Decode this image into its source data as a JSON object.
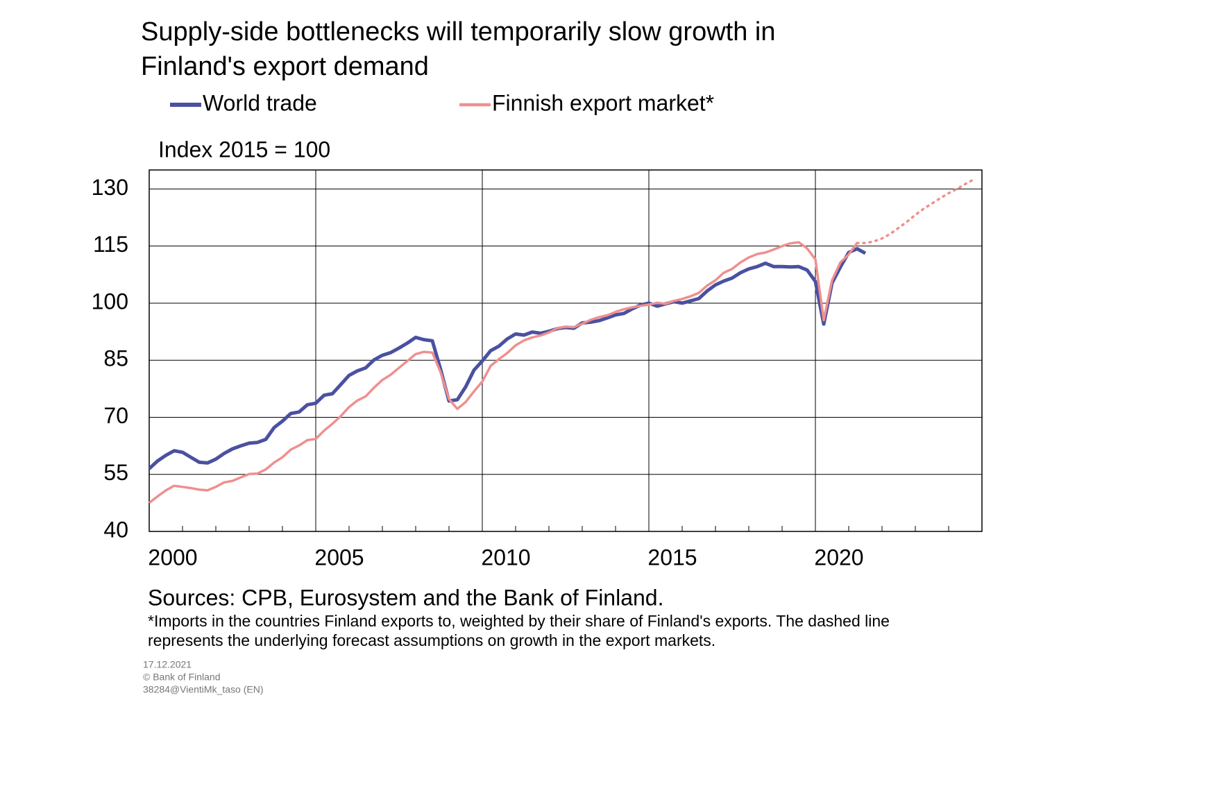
{
  "chart_data": {
    "type": "line",
    "title": "Supply-side bottlenecks will temporarily slow growth in Finland's export demand",
    "y_label": "Index 2015 = 100",
    "sources": "Sources: CPB, Eurosystem and the Bank of Finland.",
    "footnote": "*Imports in the countries Finland exports to, weighted by their share of Finland's exports. The dashed line represents the underlying forecast assumptions on growth in the export markets.",
    "meta": [
      "17.12.2021",
      "© Bank of Finland",
      "38284@VientiMk_taso  (EN)"
    ],
    "xlim": [
      2000,
      2025
    ],
    "xticks": [
      2000,
      2005,
      2010,
      2015,
      2020
    ],
    "xminorticks": [
      2001,
      2002,
      2003,
      2004,
      2006,
      2007,
      2008,
      2009,
      2011,
      2012,
      2013,
      2014,
      2016,
      2017,
      2018,
      2019,
      2021,
      2022,
      2023,
      2024
    ],
    "ylim": [
      40,
      135
    ],
    "yticks": [
      40,
      55,
      70,
      85,
      100,
      115,
      130
    ],
    "grid": true,
    "x": [
      2000,
      2000.25,
      2000.5,
      2000.75,
      2001,
      2001.25,
      2001.5,
      2001.75,
      2002,
      2002.25,
      2002.5,
      2002.75,
      2003,
      2003.25,
      2003.5,
      2003.75,
      2004,
      2004.25,
      2004.5,
      2004.75,
      2005,
      2005.25,
      2005.5,
      2005.75,
      2006,
      2006.25,
      2006.5,
      2006.75,
      2007,
      2007.25,
      2007.5,
      2007.75,
      2008,
      2008.25,
      2008.5,
      2008.75,
      2009,
      2009.25,
      2009.5,
      2009.75,
      2010,
      2010.25,
      2010.5,
      2010.75,
      2011,
      2011.25,
      2011.5,
      2011.75,
      2012,
      2012.25,
      2012.5,
      2012.75,
      2013,
      2013.25,
      2013.5,
      2013.75,
      2014,
      2014.25,
      2014.5,
      2014.75,
      2015,
      2015.25,
      2015.5,
      2015.75,
      2016,
      2016.25,
      2016.5,
      2016.75,
      2017,
      2017.25,
      2017.5,
      2017.75,
      2018,
      2018.25,
      2018.5,
      2018.75,
      2019,
      2019.25,
      2019.5,
      2019.75,
      2020,
      2020.25,
      2020.5,
      2020.75,
      2021,
      2021.25,
      2021.5,
      2021.75,
      2022,
      2022.25,
      2022.5,
      2022.75,
      2023,
      2023.25,
      2023.5,
      2023.75,
      2024,
      2024.25,
      2024.5,
      2024.75
    ],
    "series": [
      {
        "name": "World trade",
        "color": "#4a51a0",
        "width": 5,
        "values": [
          56.5,
          58.5,
          60,
          61.2,
          60.8,
          59.5,
          58.2,
          58,
          59,
          60.5,
          61.7,
          62.5,
          63.2,
          63.4,
          64.2,
          67.3,
          69,
          71,
          71.4,
          73.3,
          73.7,
          75.8,
          76.2,
          78.6,
          81,
          82.2,
          83,
          85.1,
          86.3,
          87,
          88.2,
          89.5,
          91,
          90.4,
          90.1,
          82.5,
          74.3,
          74.6,
          78,
          82.4,
          84.8,
          87.5,
          88.7,
          90.6,
          91.9,
          91.6,
          92.4,
          92.1,
          92.6,
          93.3,
          93.6,
          93.4,
          94.8,
          95,
          95.4,
          96.1,
          96.9,
          97.3,
          98.5,
          99.5,
          100,
          99.2,
          99.8,
          100.4,
          100,
          100.6,
          101.2,
          103.2,
          104.8,
          105.8,
          106.6,
          108,
          109,
          109.6,
          110.5,
          109.6,
          109.6,
          109.5,
          109.6,
          108.7,
          105.7,
          94.5,
          105.3,
          109.5,
          113.3,
          114.3,
          113.1,
          null,
          null,
          null,
          null,
          null,
          null,
          null,
          null,
          null,
          null,
          null,
          null,
          null
        ]
      },
      {
        "name": "Finnish export market*",
        "color": "#ef8f8f",
        "width": 3.5,
        "dashed_from": 2021.25,
        "values": [
          47.5,
          49.2,
          50.8,
          52,
          51.7,
          51.4,
          51,
          50.8,
          51.7,
          52.9,
          53.3,
          54.2,
          55.1,
          55.2,
          56.3,
          58.1,
          59.5,
          61.5,
          62.6,
          64,
          64.3,
          66.5,
          68.3,
          70.3,
          72.7,
          74.4,
          75.5,
          77.8,
          79.8,
          81.2,
          83,
          84.8,
          86.6,
          87.2,
          87,
          81.8,
          74.8,
          72.2,
          74,
          76.8,
          79.4,
          83.5,
          85.3,
          86.9,
          88.9,
          90.2,
          91,
          91.5,
          92.3,
          93.4,
          93.8,
          93.7,
          94.6,
          95.6,
          96.3,
          96.8,
          97.7,
          98.4,
          98.9,
          99.3,
          99.6,
          100.1,
          99.8,
          100.6,
          101.1,
          101.8,
          102.7,
          104.6,
          106,
          108,
          109,
          110.7,
          112,
          112.9,
          113.3,
          114.1,
          115,
          115.7,
          116,
          114.4,
          111.5,
          95.5,
          106,
          110.7,
          112.8,
          115.8,
          115.8,
          116.2,
          117,
          118.2,
          119.8,
          121.4,
          123.2,
          124.8,
          126.2,
          127.6,
          128.9,
          130,
          131.3,
          132.5
        ]
      }
    ]
  }
}
